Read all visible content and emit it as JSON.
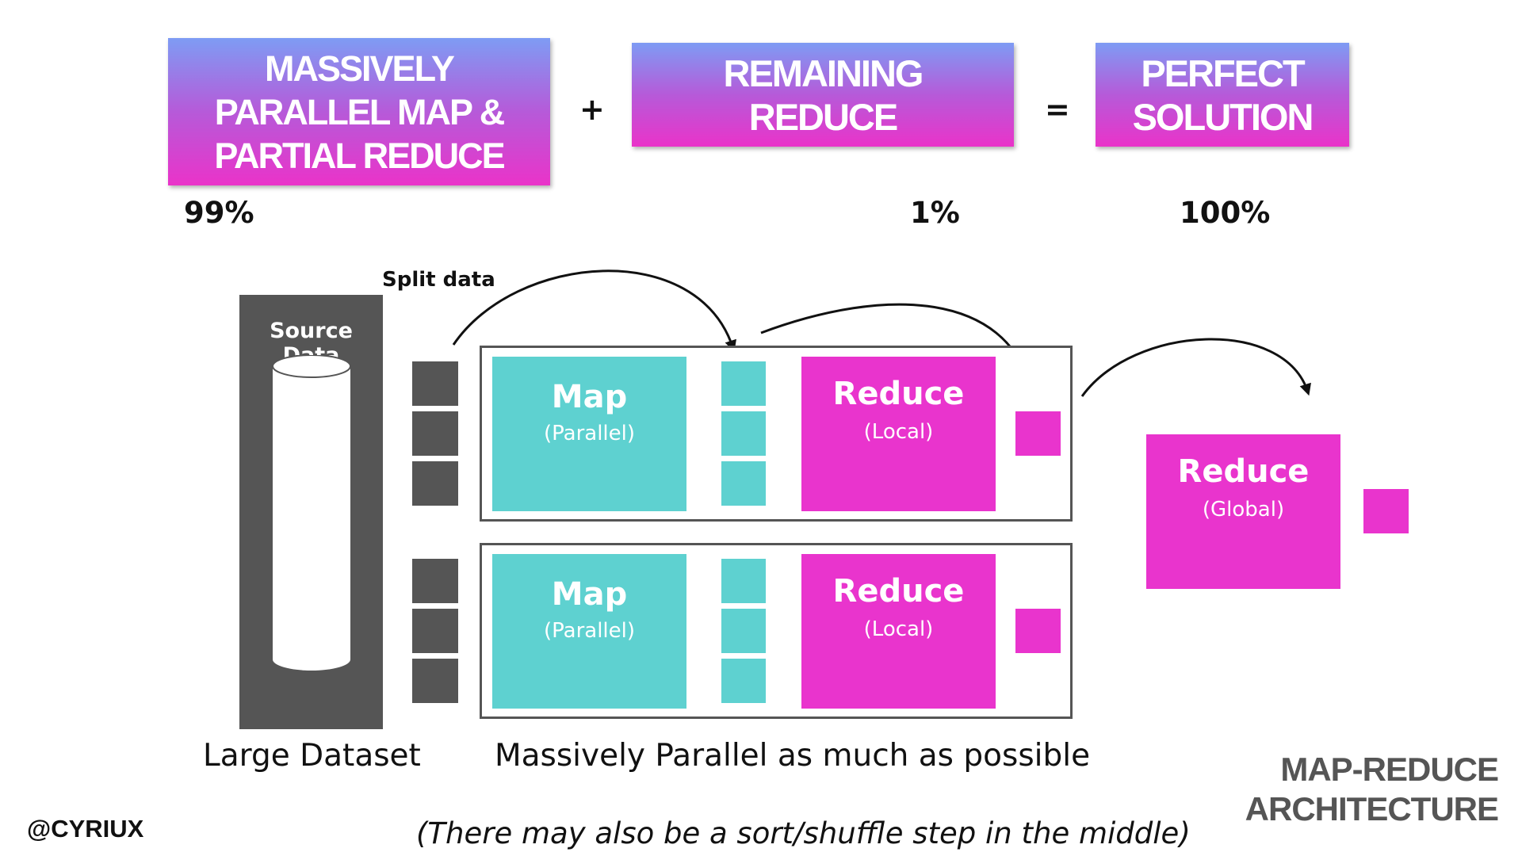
{
  "equation": {
    "term1": "MASSIVELY\nPARALLEL MAP &\nPARTIAL REDUCE",
    "plus": "+",
    "term2": "REMAINING\nREDUCE",
    "equals": "=",
    "term3": "PERFECT\nSOLUTION",
    "pct1": "99%",
    "pct2": "1%",
    "pct3": "100%"
  },
  "diagram": {
    "split_label": "Split data",
    "source_label": "Source Data",
    "workers": [
      {
        "map_title": "Map",
        "map_sub": "(Parallel)",
        "reduce_title": "Reduce",
        "reduce_sub": "(Local)"
      },
      {
        "map_title": "Map",
        "map_sub": "(Parallel)",
        "reduce_title": "Reduce",
        "reduce_sub": "(Local)"
      }
    ],
    "global_title": "Reduce",
    "global_sub": "(Global)",
    "caption_left": "Large Dataset",
    "caption_mid": "Massively Parallel as much as possible",
    "note": "(There may also be a sort/shuffle step in the middle)"
  },
  "footer": {
    "handle": "@CYRIUX",
    "brand": "MAP-REDUCE\nARCHITECTURE"
  },
  "colors": {
    "teal": "#5ed1d0",
    "magenta": "#e934cd",
    "gray": "#555555",
    "gradient_top": "#7e9cf4",
    "gradient_bottom": "#ea33c9"
  }
}
